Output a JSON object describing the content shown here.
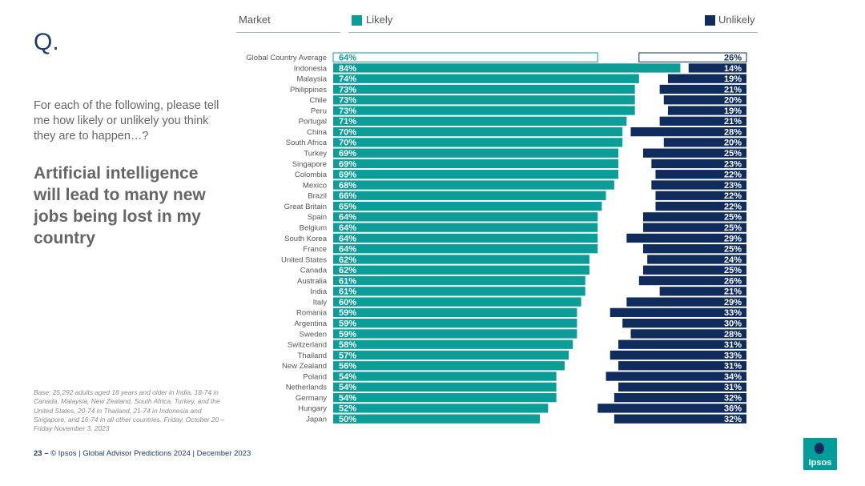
{
  "slide": {
    "q_label": "Q.",
    "question": "For each of the following, please tell me how likely or unlikely you think they are to happen…?",
    "statement": "Artificial intelligence will lead to many new jobs being lost in my country",
    "base": "Base: 25,292 adults aged 18 years and older in India, 18-74 in Canada, Malaysia, New Zealand, South Africa, Turkey, and the United States, 20-74 in Thailand, 21-74 in Indonesia and Singapore, and 16-74 in all other countries. Friday, October 20 – Friday November 3, 2023",
    "page_number": "23 –",
    "footer": "© Ipsos | Global Advisor Predictions 2024 | December 2023",
    "logo_text": "Ipsos"
  },
  "colors": {
    "likely": "#0d9d99",
    "unlikely": "#0f2c5c",
    "accent": "#1f3a6e"
  },
  "chart_data": {
    "type": "bar",
    "header": {
      "market": "Market",
      "likely": "Likely",
      "unlikely": "Unlikely"
    },
    "categories": [
      "Global Country Average",
      "Indonesia",
      "Malaysia",
      "Philippines",
      "Chile",
      "Peru",
      "Portugal",
      "China",
      "South Africa",
      "Turkey",
      "Singapore",
      "Colombia",
      "Mexico",
      "Brazil",
      "Great Britain",
      "Spain",
      "Belgium",
      "South Korea",
      "France",
      "United States",
      "Canada",
      "Australia",
      "India",
      "Italy",
      "Romania",
      "Argentina",
      "Sweden",
      "Switzerland",
      "Thailand",
      "New Zealand",
      "Poland",
      "Netherlands",
      "Germany",
      "Hungary",
      "Japan"
    ],
    "series": [
      {
        "name": "Likely",
        "values": [
          64,
          84,
          74,
          73,
          73,
          73,
          71,
          70,
          70,
          69,
          69,
          69,
          68,
          66,
          65,
          64,
          64,
          64,
          64,
          62,
          62,
          61,
          61,
          60,
          59,
          59,
          59,
          58,
          57,
          56,
          54,
          54,
          54,
          52,
          50
        ]
      },
      {
        "name": "Unlikely",
        "values": [
          26,
          14,
          19,
          21,
          20,
          19,
          21,
          28,
          20,
          25,
          23,
          22,
          23,
          22,
          22,
          25,
          25,
          29,
          25,
          24,
          25,
          26,
          21,
          29,
          33,
          30,
          28,
          31,
          33,
          31,
          34,
          31,
          32,
          36,
          32
        ]
      }
    ],
    "value_suffix": "%",
    "xlim": [
      0,
      100
    ]
  }
}
